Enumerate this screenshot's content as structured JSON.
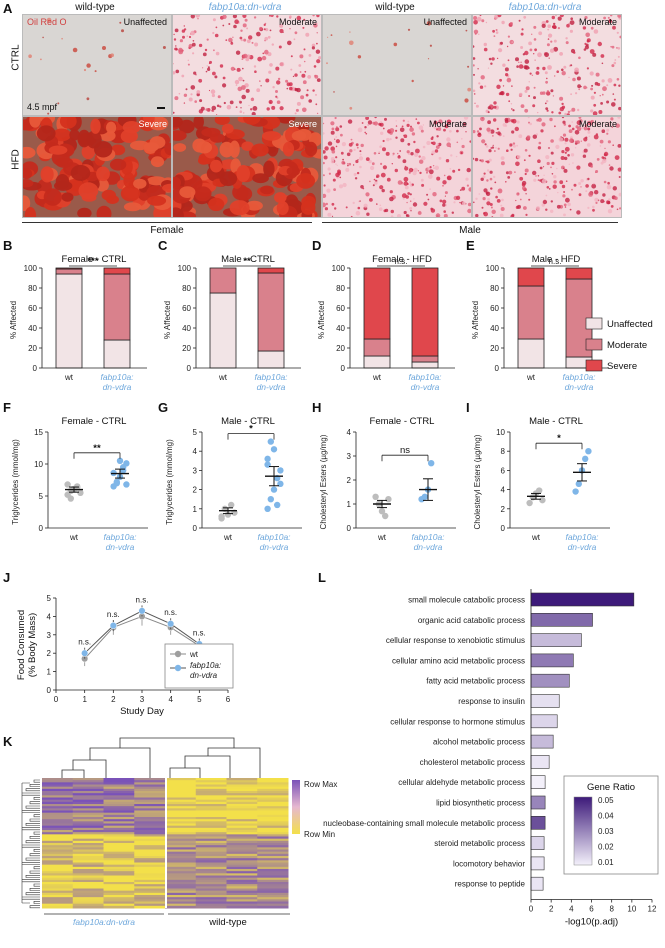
{
  "panels": {
    "A": "A",
    "B": "B",
    "C": "C",
    "D": "D",
    "E": "E",
    "F": "F",
    "G": "G",
    "H": "H",
    "I": "I",
    "J": "J",
    "K": "K",
    "L": "L"
  },
  "panelA": {
    "headers": [
      "wild-type",
      "fabp10a:dn-vdra",
      "wild-type",
      "fabp10a:dn-vdra"
    ],
    "stain_label": "Oil Red O",
    "row_labels": [
      "CTRL",
      "HFD"
    ],
    "age_label": "4.5 mpf",
    "sex_labels": [
      "Female",
      "Male"
    ],
    "tiles": [
      {
        "severity": "Unaffected",
        "tone": "light"
      },
      {
        "severity": "Moderate",
        "tone": "mod"
      },
      {
        "severity": "Unaffected",
        "tone": "light"
      },
      {
        "severity": "Moderate",
        "tone": "mod"
      },
      {
        "severity": "Severe",
        "tone": "severe"
      },
      {
        "severity": "Severe",
        "tone": "severe"
      },
      {
        "severity": "Moderate",
        "tone": "mod2"
      },
      {
        "severity": "Moderate",
        "tone": "mod2"
      }
    ]
  },
  "colors": {
    "unaffected": "#f2e4e6",
    "moderate": "#d9818c",
    "severe": "#e0474c",
    "wt_dot": "#bdbdbd",
    "mut_dot": "#7fb6e8",
    "mut_text": "#6fa8dc"
  },
  "chart_data": [
    {
      "id": "B",
      "type": "bar",
      "title": "Female - CTRL",
      "ylabel": "% Affected",
      "ylim": [
        0,
        100
      ],
      "categories": [
        "wt",
        "fabp10a:\ndn-vdra"
      ],
      "series": [
        {
          "name": "Unaffected",
          "values": [
            94,
            28
          ]
        },
        {
          "name": "Moderate",
          "values": [
            5,
            66
          ]
        },
        {
          "name": "Severe",
          "values": [
            1,
            6
          ]
        }
      ],
      "significance": "***"
    },
    {
      "id": "C",
      "type": "bar",
      "title": "Male - CTRL",
      "ylabel": "% Affected",
      "ylim": [
        0,
        100
      ],
      "categories": [
        "wt",
        "fabp10a:\ndn-vdra"
      ],
      "series": [
        {
          "name": "Unaffected",
          "values": [
            75,
            17
          ]
        },
        {
          "name": "Moderate",
          "values": [
            25,
            78
          ]
        },
        {
          "name": "Severe",
          "values": [
            0,
            5
          ]
        }
      ],
      "significance": "**"
    },
    {
      "id": "D",
      "type": "bar",
      "title": "Female - HFD",
      "ylabel": "% Affected",
      "ylim": [
        0,
        100
      ],
      "categories": [
        "wt",
        "fabp10a:\ndn-vdra"
      ],
      "series": [
        {
          "name": "Unaffected",
          "values": [
            12,
            6
          ]
        },
        {
          "name": "Moderate",
          "values": [
            17,
            6
          ]
        },
        {
          "name": "Severe",
          "values": [
            71,
            88
          ]
        }
      ],
      "significance": "n.s."
    },
    {
      "id": "E",
      "type": "bar",
      "title": "Male - HFD",
      "ylabel": "% Affected",
      "ylim": [
        0,
        100
      ],
      "categories": [
        "wt",
        "fabp10a:\ndn-vdra"
      ],
      "series": [
        {
          "name": "Unaffected",
          "values": [
            29,
            11
          ]
        },
        {
          "name": "Moderate",
          "values": [
            53,
            78
          ]
        },
        {
          "name": "Severe",
          "values": [
            18,
            11
          ]
        }
      ],
      "significance": "n.s."
    },
    {
      "id": "F",
      "type": "scatter",
      "title": "Female - CTRL",
      "ylabel": "Triglycerides (mmol/mg)",
      "ylim": [
        0,
        15
      ],
      "yticks": [
        0,
        5,
        10,
        15
      ],
      "categories": [
        "wt",
        "fabp10a:\ndn-vdra"
      ],
      "groups": [
        {
          "name": "wt",
          "mean": 6.0,
          "sem": 0.4,
          "points": [
            5.2,
            5.8,
            6.1,
            6.5,
            5.5,
            6.8,
            4.6,
            6.0,
            6.3
          ]
        },
        {
          "name": "fabp10a:dn-vdra",
          "mean": 8.5,
          "sem": 0.7,
          "points": [
            6.5,
            7.2,
            8.0,
            9.0,
            10.1,
            8.6,
            7.0,
            10.5,
            9.5,
            6.8
          ]
        }
      ],
      "significance": "**"
    },
    {
      "id": "G",
      "type": "scatter",
      "title": "Male - CTRL",
      "ylabel": "Triglycerides (mmol/mg)",
      "ylim": [
        0,
        5
      ],
      "yticks": [
        0,
        1,
        2,
        3,
        4,
        5
      ],
      "categories": [
        "wt",
        "fabp10a:\ndn-vdra"
      ],
      "groups": [
        {
          "name": "wt",
          "mean": 0.9,
          "sem": 0.15,
          "points": [
            0.6,
            1.0,
            0.7,
            1.2,
            0.8,
            0.5
          ]
        },
        {
          "name": "fabp10a:dn-vdra",
          "mean": 2.7,
          "sem": 0.5,
          "points": [
            1.0,
            1.5,
            2.0,
            2.6,
            3.0,
            3.6,
            4.5,
            4.1,
            1.2,
            2.3,
            3.3
          ]
        }
      ],
      "significance": "*"
    },
    {
      "id": "H",
      "type": "scatter",
      "title": "Female - CTRL",
      "ylabel": "Cholesteryl Esters (µg/mg)",
      "ylim": [
        0,
        4
      ],
      "yticks": [
        0,
        1,
        2,
        3,
        4
      ],
      "categories": [
        "wt",
        "fabp10a:\ndn-vdra"
      ],
      "groups": [
        {
          "name": "wt",
          "mean": 1.0,
          "sem": 0.15,
          "points": [
            1.3,
            1.0,
            0.7,
            0.5,
            1.2
          ]
        },
        {
          "name": "fabp10a:dn-vdra",
          "mean": 1.6,
          "sem": 0.45,
          "points": [
            1.2,
            1.3,
            1.6,
            2.7
          ]
        }
      ],
      "significance": "ns"
    },
    {
      "id": "I",
      "type": "scatter",
      "title": "Male - CTRL",
      "ylabel": "Cholesteryl Esters (µg/mg)",
      "ylim": [
        0,
        10
      ],
      "yticks": [
        0,
        2,
        4,
        6,
        8,
        10
      ],
      "categories": [
        "wt",
        "fabp10a:\ndn-vdra"
      ],
      "groups": [
        {
          "name": "wt",
          "mean": 3.3,
          "sem": 0.3,
          "points": [
            2.6,
            3.2,
            3.6,
            3.9,
            2.9
          ]
        },
        {
          "name": "fabp10a:dn-vdra",
          "mean": 5.8,
          "sem": 0.9,
          "points": [
            3.8,
            4.6,
            6.0,
            7.2,
            8.0
          ]
        }
      ],
      "significance": "*"
    },
    {
      "id": "J",
      "type": "line",
      "xlabel": "Study Day",
      "ylabel": "Food Consumed\n(% Body Mass)",
      "xlim": [
        0,
        6
      ],
      "ylim": [
        0,
        5
      ],
      "xticks": [
        0,
        1,
        2,
        3,
        4,
        5,
        6
      ],
      "yticks": [
        0,
        1,
        2,
        3,
        4,
        5
      ],
      "series": [
        {
          "name": "wt",
          "x": [
            1,
            2,
            3,
            4,
            5
          ],
          "y": [
            1.7,
            3.4,
            4.0,
            3.4,
            2.4
          ],
          "err": [
            0.4,
            0.4,
            0.5,
            0.4,
            0.3
          ]
        },
        {
          "name": "fabp10a:\ndn-vdra",
          "x": [
            1,
            2,
            3,
            4,
            5
          ],
          "y": [
            2.0,
            3.5,
            4.3,
            3.6,
            2.5
          ],
          "err": [
            0.3,
            0.3,
            0.3,
            0.3,
            0.3
          ]
        }
      ],
      "annotations": [
        "n.s.",
        "n.s.",
        "n.s.",
        "n.s.",
        "n.s."
      ]
    },
    {
      "id": "L",
      "type": "bar",
      "orientation": "horizontal",
      "xlabel": "-log10(p.adj)",
      "xlim": [
        0,
        12
      ],
      "xticks": [
        0,
        2,
        4,
        6,
        8,
        10,
        12
      ],
      "categories": [
        "small molecule catabolic process",
        "organic acid catabolic process",
        "cellular response to xenobiotic stimulus",
        "cellular amino acid metabolic process",
        "fatty acid metabolic process",
        "response to insulin",
        "cellular response to hormone stimulus",
        "alcohol metabolic process",
        "cholesterol metabolic process",
        "cellular aldehyde metabolic process",
        "lipid biosynthetic process",
        "nucleobase-containing small molecule metabolic process",
        "steroid metabolic process",
        "locomotory behavior",
        "response to peptide"
      ],
      "values": [
        10.2,
        6.1,
        5.0,
        4.2,
        3.8,
        2.8,
        2.6,
        2.2,
        1.8,
        1.4,
        1.4,
        1.4,
        1.3,
        1.3,
        1.2
      ],
      "gene_ratio": [
        0.05,
        0.035,
        0.02,
        0.032,
        0.028,
        0.013,
        0.015,
        0.02,
        0.012,
        0.01,
        0.03,
        0.04,
        0.015,
        0.012,
        0.012
      ],
      "legend": {
        "title": "Gene Ratio",
        "ticks": [
          "0.05",
          "0.04",
          "0.03",
          "0.02",
          "0.01"
        ]
      }
    }
  ],
  "legendBE": [
    "Unaffected",
    "Moderate",
    "Severe"
  ],
  "panelJ_legend": [
    "wt",
    "fabp10a:",
    "dn-vdra"
  ],
  "panelK": {
    "row_max": "Row Max",
    "row_min": "Row Min",
    "labels": [
      "fabp10a:dn-vdra",
      "wild-type"
    ]
  }
}
